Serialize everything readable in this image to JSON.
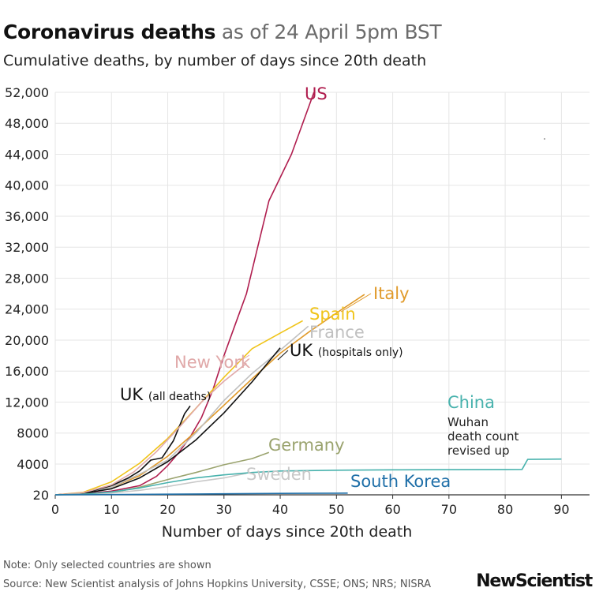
{
  "header": {
    "title_bold": "Coronavirus deaths",
    "title_light": "as of 24 April 5pm BST",
    "subtitle": "Cumulative deaths, by number of days since 20th death"
  },
  "footer": {
    "note": "Note: Only selected countries are shown",
    "source": "Source: New Scientist analysis of Johns Hopkins University, CSSE; ONS; NRS; NISRA",
    "logo": "NewScientist"
  },
  "colors": {
    "grid": "#e6e6e6",
    "axis": "#333333"
  },
  "chart_data": {
    "type": "line",
    "xlabel": "Number of days since 20th death",
    "ylabel": "",
    "xlim": [
      0,
      95
    ],
    "ylim": [
      20,
      52000
    ],
    "grid": true,
    "x_ticks": [
      0,
      10,
      20,
      30,
      40,
      50,
      60,
      70,
      80,
      90
    ],
    "y_ticks": [
      20,
      4000,
      8000,
      12000,
      16000,
      20000,
      24000,
      28000,
      32000,
      36000,
      40000,
      44000,
      48000,
      52000
    ],
    "y_tick_labels": [
      "20",
      "4000",
      "8000",
      "12,000",
      "16,000",
      "20,000",
      "24,000",
      "28,000",
      "32,000",
      "36,000",
      "40,000",
      "44,000",
      "48,000",
      "52,000"
    ],
    "series": [
      {
        "name": "US",
        "color": "#b01e4f",
        "x": [
          0,
          5,
          10,
          15,
          18,
          20,
          22,
          24,
          26,
          28,
          30,
          32,
          34,
          36,
          38,
          40,
          42,
          44,
          45,
          46
        ],
        "y": [
          20,
          150,
          500,
          1200,
          2400,
          3800,
          5500,
          7500,
          10000,
          13500,
          18000,
          22000,
          26000,
          32000,
          38000,
          41000,
          44000,
          48000,
          50000,
          52000
        ]
      },
      {
        "name": "Italy",
        "color": "#e09a2a",
        "x": [
          0,
          5,
          10,
          15,
          20,
          25,
          30,
          35,
          40,
          45,
          50,
          55
        ],
        "y": [
          20,
          300,
          1000,
          2500,
          5000,
          8200,
          11600,
          15000,
          18300,
          21000,
          23500,
          25900
        ]
      },
      {
        "name": "Spain",
        "color": "#f0c419",
        "x": [
          0,
          5,
          10,
          15,
          20,
          25,
          30,
          35,
          40,
          44
        ],
        "y": [
          20,
          350,
          1700,
          4100,
          7300,
          11200,
          15200,
          18900,
          20900,
          22500
        ]
      },
      {
        "name": "France",
        "color": "#c0c0c0",
        "x": [
          0,
          5,
          10,
          15,
          20,
          25,
          30,
          35,
          40,
          45
        ],
        "y": [
          20,
          200,
          1000,
          2700,
          4500,
          8000,
          12200,
          15700,
          18700,
          21800
        ]
      },
      {
        "name": "UK (hospitals only)",
        "color": "#111111",
        "x": [
          0,
          5,
          10,
          15,
          20,
          25,
          30,
          35,
          40
        ],
        "y": [
          20,
          200,
          800,
          2200,
          4300,
          7100,
          10600,
          14600,
          19000
        ]
      },
      {
        "name": "UK (all deaths)",
        "color": "#111111",
        "x": [
          0,
          5,
          10,
          13,
          15,
          17,
          19,
          21,
          23,
          24
        ],
        "y": [
          20,
          250,
          1200,
          2200,
          3100,
          4500,
          4800,
          7000,
          10500,
          11500
        ]
      },
      {
        "name": "New York",
        "color": "#e0a8a8",
        "x": [
          0,
          5,
          10,
          14,
          18,
          22,
          26,
          30,
          34
        ],
        "y": [
          20,
          300,
          1300,
          3000,
          5600,
          8700,
          12000,
          14700,
          17000
        ]
      },
      {
        "name": "Germany",
        "color": "#9aa36e",
        "x": [
          0,
          5,
          10,
          15,
          20,
          25,
          30,
          35,
          38
        ],
        "y": [
          20,
          100,
          300,
          1000,
          2000,
          2900,
          3900,
          4700,
          5500
        ]
      },
      {
        "name": "Sweden",
        "color": "#c8c8c8",
        "x": [
          0,
          5,
          10,
          15,
          20,
          25,
          30,
          34
        ],
        "y": [
          20,
          80,
          250,
          600,
          1100,
          1700,
          2200,
          2800
        ]
      },
      {
        "name": "China",
        "color": "#48b2ad",
        "x": [
          0,
          5,
          10,
          15,
          20,
          25,
          30,
          35,
          40,
          50,
          60,
          70,
          80,
          83,
          84,
          90
        ],
        "y": [
          20,
          100,
          400,
          900,
          1600,
          2200,
          2600,
          2900,
          3100,
          3200,
          3250,
          3270,
          3290,
          3300,
          4600,
          4640
        ]
      },
      {
        "name": "South Korea",
        "color": "#1f6fa8",
        "x": [
          0,
          10,
          20,
          30,
          40,
          50,
          52
        ],
        "y": [
          20,
          50,
          100,
          150,
          200,
          230,
          240
        ]
      }
    ],
    "annotations": [
      {
        "text": "Wuhan",
        "color": "#222222"
      },
      {
        "text": "death count",
        "color": "#222222"
      },
      {
        "text": "revised up",
        "color": "#222222"
      }
    ]
  }
}
